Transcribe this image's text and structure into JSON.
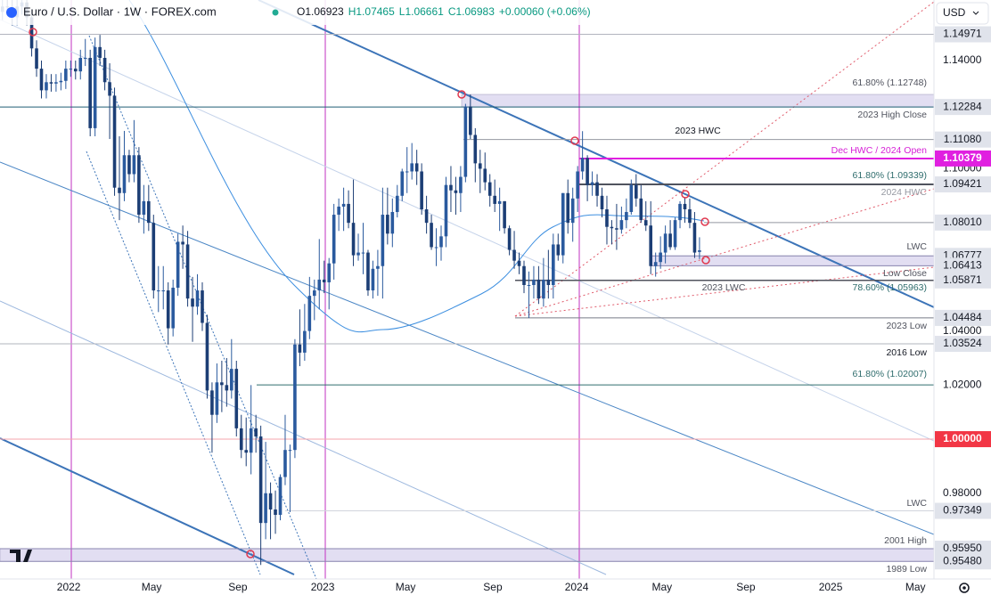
{
  "chart_data": {
    "type": "candlestick",
    "title": "Euro / U.S. Dollar · 1W · FOREX.com",
    "header_values": [
      "O1.06923",
      "H1.07465",
      "L1.06661",
      "C1.06983",
      "+0.00060 (+0.06%)"
    ],
    "currency": "USD",
    "up_color": "#2a5a9e",
    "down_color": "#1c3e75",
    "xlim": [
      0,
      191.6
    ],
    "xticks": [
      {
        "value": 14.1,
        "label": "2022"
      },
      {
        "value": 31.1,
        "label": "May"
      },
      {
        "value": 48.8,
        "label": "Sep"
      },
      {
        "value": 66.2,
        "label": "2023"
      },
      {
        "value": 83.2,
        "label": "May"
      },
      {
        "value": 101.1,
        "label": "Sep"
      },
      {
        "value": 118.3,
        "label": "2024"
      },
      {
        "value": 135.8,
        "label": "May"
      },
      {
        "value": 153,
        "label": "Sep"
      },
      {
        "value": 170.4,
        "label": "2025"
      },
      {
        "value": 187.8,
        "label": "May"
      }
    ],
    "ylim": [
      0.9483,
      1.1624
    ],
    "yticks": [
      {
        "value": 0.98,
        "label": "0.98000"
      },
      {
        "value": 1.02,
        "label": "1.02000"
      },
      {
        "value": 1.04,
        "label": "1.04000"
      },
      {
        "value": 1.1,
        "label": "1.10000"
      },
      {
        "value": 1.14,
        "label": "1.14000"
      }
    ],
    "candles": [
      [
        1.158,
        1.163,
        1.155,
        1.16
      ],
      [
        1.16,
        1.163,
        1.1568,
        1.1598
      ],
      [
        1.1598,
        1.1628,
        1.153,
        1.156
      ],
      [
        1.156,
        1.163,
        1.153,
        1.16
      ],
      [
        1.16,
        1.164,
        1.157,
        1.1615
      ],
      [
        1.1615,
        1.1645,
        1.153,
        1.156
      ],
      [
        1.156,
        1.159,
        1.1415,
        1.1445
      ],
      [
        1.1445,
        1.1475,
        1.134,
        1.137
      ],
      [
        1.137,
        1.14,
        1.126,
        1.129
      ],
      [
        1.129,
        1.135,
        1.126,
        1.132
      ],
      [
        1.132,
        1.135,
        1.1285,
        1.1315
      ],
      [
        1.1315,
        1.135,
        1.1285,
        1.132
      ],
      [
        1.132,
        1.1355,
        1.129,
        1.1325
      ],
      [
        1.1325,
        1.14,
        1.1295,
        1.137
      ],
      [
        1.137,
        1.14,
        1.134,
        1.137
      ],
      [
        1.137,
        1.14,
        1.133,
        1.136
      ],
      [
        1.136,
        1.144,
        1.133,
        1.141
      ],
      [
        1.141,
        1.148,
        1.138,
        1.141
      ],
      [
        1.141,
        1.144,
        1.112,
        1.115
      ],
      [
        1.115,
        1.1485,
        1.112,
        1.145
      ],
      [
        1.145,
        1.1495,
        1.138,
        1.141
      ],
      [
        1.141,
        1.144,
        1.129,
        1.132
      ],
      [
        1.132,
        1.139,
        1.111,
        1.127
      ],
      [
        1.127,
        1.13,
        1.09,
        1.093
      ],
      [
        1.093,
        1.112,
        1.081,
        1.091
      ],
      [
        1.091,
        1.114,
        1.088,
        1.105
      ],
      [
        1.105,
        1.107,
        1.095,
        1.098
      ],
      [
        1.098,
        1.118,
        1.095,
        1.105
      ],
      [
        1.105,
        1.108,
        1.08,
        1.083
      ],
      [
        1.083,
        1.094,
        1.076,
        1.088
      ],
      [
        1.088,
        1.094,
        1.077,
        1.08
      ],
      [
        1.08,
        1.083,
        1.052,
        1.055
      ],
      [
        1.055,
        1.064,
        1.047,
        1.055
      ],
      [
        1.055,
        1.064,
        1.048,
        1.055
      ],
      [
        1.055,
        1.058,
        1.035,
        1.041
      ],
      [
        1.041,
        1.059,
        1.038,
        1.056
      ],
      [
        1.056,
        1.076,
        1.053,
        1.073
      ],
      [
        1.073,
        1.079,
        1.063,
        1.072
      ],
      [
        1.072,
        1.077,
        1.049,
        1.052
      ],
      [
        1.052,
        1.06,
        1.036,
        1.049
      ],
      [
        1.049,
        1.061,
        1.046,
        1.055
      ],
      [
        1.055,
        1.058,
        1.04,
        1.043
      ],
      [
        1.043,
        1.046,
        1.015,
        1.018
      ],
      [
        1.018,
        1.021,
        0.995,
        1.009
      ],
      [
        1.009,
        1.028,
        1.006,
        1.021
      ],
      [
        1.021,
        1.029,
        1.01,
        1.02
      ],
      [
        1.02,
        1.03,
        1.012,
        1.018
      ],
      [
        1.018,
        1.037,
        1.015,
        1.026
      ],
      [
        1.026,
        1.029,
        1.001,
        1.004
      ],
      [
        1.004,
        1.009,
        0.993,
        0.996
      ],
      [
        0.996,
        1.008,
        0.99,
        0.995
      ],
      [
        0.995,
        1.02,
        0.987,
        1.004
      ],
      [
        1.004,
        1.009,
        0.995,
        1.001
      ],
      [
        1.001,
        1.005,
        0.9535,
        0.969
      ],
      [
        0.969,
        0.999,
        0.963,
        0.98
      ],
      [
        0.98,
        0.984,
        0.963,
        0.974
      ],
      [
        0.974,
        0.981,
        0.965,
        0.972
      ],
      [
        0.972,
        0.987,
        0.97,
        0.986
      ],
      [
        0.986,
        1.009,
        0.983,
        0.996
      ],
      [
        0.996,
        0.998,
        0.973,
        0.996
      ],
      [
        0.996,
        1.037,
        0.993,
        1.035
      ],
      [
        1.035,
        1.048,
        1.027,
        1.032
      ],
      [
        1.032,
        1.05,
        1.029,
        1.04
      ],
      [
        1.04,
        1.06,
        1.037,
        1.053
      ],
      [
        1.053,
        1.059,
        1.044,
        1.055
      ],
      [
        1.055,
        1.074,
        1.048,
        1.059
      ],
      [
        1.059,
        1.066,
        1.054,
        1.058
      ],
      [
        1.058,
        1.067,
        1.048,
        1.065
      ],
      [
        1.065,
        1.087,
        1.059,
        1.083
      ],
      [
        1.083,
        1.089,
        1.077,
        1.086
      ],
      [
        1.086,
        1.093,
        1.077,
        1.087
      ],
      [
        1.087,
        1.092,
        1.078,
        1.08
      ],
      [
        1.08,
        1.096,
        1.064,
        1.068
      ],
      [
        1.068,
        1.076,
        1.066,
        1.069
      ],
      [
        1.069,
        1.08,
        1.061,
        1.069
      ],
      [
        1.069,
        1.07,
        1.053,
        1.055
      ],
      [
        1.055,
        1.066,
        1.052,
        1.063
      ],
      [
        1.063,
        1.07,
        1.053,
        1.064
      ],
      [
        1.064,
        1.093,
        1.052,
        1.083
      ],
      [
        1.083,
        1.093,
        1.072,
        1.076
      ],
      [
        1.076,
        1.089,
        1.071,
        1.084
      ],
      [
        1.084,
        1.094,
        1.082,
        1.09
      ],
      [
        1.09,
        1.1,
        1.088,
        1.099
      ],
      [
        1.099,
        1.108,
        1.091,
        1.099
      ],
      [
        1.099,
        1.1095,
        1.096,
        1.102
      ],
      [
        1.102,
        1.107,
        1.094,
        1.099
      ],
      [
        1.099,
        1.102,
        1.083,
        1.085
      ],
      [
        1.085,
        1.09,
        1.076,
        1.08
      ],
      [
        1.08,
        1.083,
        1.07,
        1.071
      ],
      [
        1.071,
        1.078,
        1.064,
        1.071
      ],
      [
        1.071,
        1.079,
        1.066,
        1.075
      ],
      [
        1.075,
        1.097,
        1.071,
        1.094
      ],
      [
        1.094,
        1.101,
        1.084,
        1.092
      ],
      [
        1.092,
        1.097,
        1.083,
        1.091
      ],
      [
        1.091,
        1.101,
        1.084,
        1.097
      ],
      [
        1.097,
        1.124,
        1.095,
        1.123
      ],
      [
        1.123,
        1.12748,
        1.111,
        1.1125
      ],
      [
        1.1125,
        1.115,
        1.095,
        1.102
      ],
      [
        1.102,
        1.107,
        1.091,
        1.1
      ],
      [
        1.1,
        1.106,
        1.092,
        1.095
      ],
      [
        1.095,
        1.098,
        1.086,
        1.09
      ],
      [
        1.09,
        1.096,
        1.084,
        1.087
      ],
      [
        1.087,
        1.093,
        1.077,
        1.088
      ],
      [
        1.088,
        1.088,
        1.076,
        1.078
      ],
      [
        1.078,
        1.079,
        1.068,
        1.07
      ],
      [
        1.07,
        1.077,
        1.063,
        1.066
      ],
      [
        1.066,
        1.069,
        1.061,
        1.064
      ],
      [
        1.064,
        1.066,
        1.054,
        1.057
      ],
      [
        1.057,
        1.062,
        1.0448,
        1.057
      ],
      [
        1.057,
        1.064,
        1.052,
        1.059
      ],
      [
        1.059,
        1.064,
        1.05,
        1.052
      ],
      [
        1.052,
        1.067,
        1.049,
        1.059
      ],
      [
        1.059,
        1.07,
        1.052,
        1.057
      ],
      [
        1.057,
        1.076,
        1.052,
        1.072
      ],
      [
        1.072,
        1.076,
        1.066,
        1.068
      ],
      [
        1.068,
        1.091,
        1.065,
        1.091
      ],
      [
        1.091,
        1.096,
        1.076,
        1.08
      ],
      [
        1.08,
        1.093,
        1.073,
        1.089
      ],
      [
        1.089,
        1.101,
        1.084,
        1.099
      ],
      [
        1.099,
        1.1139,
        1.096,
        1.104
      ],
      [
        1.104,
        1.105,
        1.088,
        1.094
      ],
      [
        1.094,
        1.099,
        1.09,
        1.095
      ],
      [
        1.095,
        1.098,
        1.086,
        1.09
      ],
      [
        1.09,
        1.093,
        1.082,
        1.085
      ],
      [
        1.085,
        1.09,
        1.072,
        1.0785
      ],
      [
        1.0785,
        1.081,
        1.072,
        1.078
      ],
      [
        1.078,
        1.087,
        1.07,
        1.0775
      ],
      [
        1.0775,
        1.086,
        1.076,
        1.081
      ],
      [
        1.081,
        1.089,
        1.078,
        1.084
      ],
      [
        1.084,
        1.096,
        1.083,
        1.094
      ],
      [
        1.094,
        1.098,
        1.086,
        1.089
      ],
      [
        1.089,
        1.094,
        1.08,
        1.081
      ],
      [
        1.081,
        1.088,
        1.077,
        1.079
      ],
      [
        1.079,
        1.088,
        1.061,
        1.064
      ],
      [
        1.064,
        1.069,
        1.0601,
        1.0655
      ],
      [
        1.0655,
        1.075,
        1.063,
        1.069
      ],
      [
        1.069,
        1.079,
        1.065,
        1.076
      ],
      [
        1.076,
        1.081,
        1.07,
        1.071
      ],
      [
        1.071,
        1.082,
        1.07,
        1.081
      ],
      [
        1.081,
        1.088,
        1.078,
        1.087
      ],
      [
        1.087,
        1.0895,
        1.08,
        1.085
      ],
      [
        1.085,
        1.089,
        1.078,
        1.08
      ],
      [
        1.08,
        1.084,
        1.067,
        1.069
      ],
      [
        1.06923,
        1.07465,
        1.06661,
        1.06983
      ]
    ],
    "levels": [
      {
        "value": 1.14971
      },
      {
        "value": 1.12284
      },
      {
        "value": 1.1108,
        "label": "1.11080"
      },
      {
        "value": 1.10379
      },
      {
        "value": 1.09421
      },
      {
        "value": 1.0801,
        "label": "1.08010"
      },
      {
        "value": 1.06777
      },
      {
        "value": 1.06413
      },
      {
        "value": 1.05871
      },
      {
        "value": 1.04484
      },
      {
        "value": 1.03524
      },
      {
        "value": 1.02007
      },
      {
        "value": 1,
        "label": "1.00000"
      },
      {
        "value": 0.97349
      },
      {
        "value": 0.9595,
        "label": "0.95950"
      },
      {
        "value": 0.9548,
        "label": "0.95480"
      }
    ],
    "zones": [
      {
        "from": 1.12284,
        "to": 1.12748
      },
      {
        "from": 1.06413,
        "to": 1.06777
      },
      {
        "from": 0.9548,
        "to": 0.9595
      }
    ],
    "annotations": [
      "61.80% (1.12748)",
      "2023 High Close",
      "2023 HWC",
      "Dec HWC / 2024 Open",
      "61.80% (1.09339)",
      "2024 HWC",
      "LWC",
      "Low Close",
      "78.60% (1.05963)",
      "2023 LWC",
      "2023 Low",
      "2016 Low",
      "61.80% (1.02007)",
      "LWC",
      "2001 High",
      "1989 Low"
    ]
  }
}
